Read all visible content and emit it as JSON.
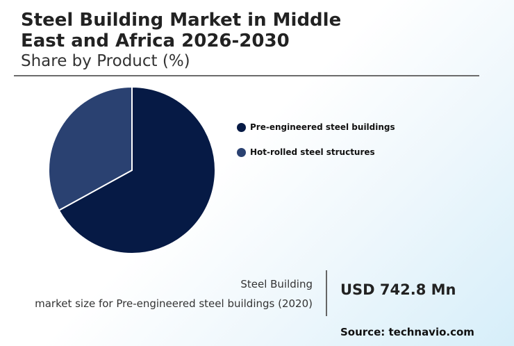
{
  "header": {
    "title_line1": "Steel Building Market in Middle",
    "title_line2": "East and Africa 2026-2030",
    "subtitle": "Share by Product (%)"
  },
  "chart_data": {
    "type": "pie",
    "title": "Steel Building Market in Middle East and Africa 2026-2030",
    "subtitle": "Share by Product (%)",
    "categories": [
      "Pre-engineered steel buildings",
      "Hot-rolled steel structures"
    ],
    "values": [
      67,
      33
    ],
    "colors": [
      "#061a45",
      "#2a4171"
    ],
    "legend_position": "right"
  },
  "stat": {
    "label_line1": "Steel Building",
    "label_line2": "market size for Pre-engineered steel buildings (2020)",
    "value": "USD 742.8 Mn"
  },
  "source": "Source: technavio.com"
}
